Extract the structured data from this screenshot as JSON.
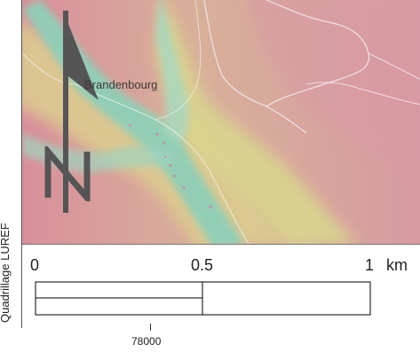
{
  "map": {
    "place_name": "Brandenbourg",
    "side_label": "Quadrillage LUREF",
    "grid_tick_label": "78000",
    "north_letter": "N",
    "colors": {
      "valley": "#8fcfb8",
      "slope": "#d9d58e",
      "upland": "#d79aa0",
      "road": "#f2eef2",
      "arrow": "#555555"
    }
  },
  "scalebar": {
    "label_start": "0",
    "label_mid": "0.5",
    "label_end": "1",
    "unit": "km"
  }
}
